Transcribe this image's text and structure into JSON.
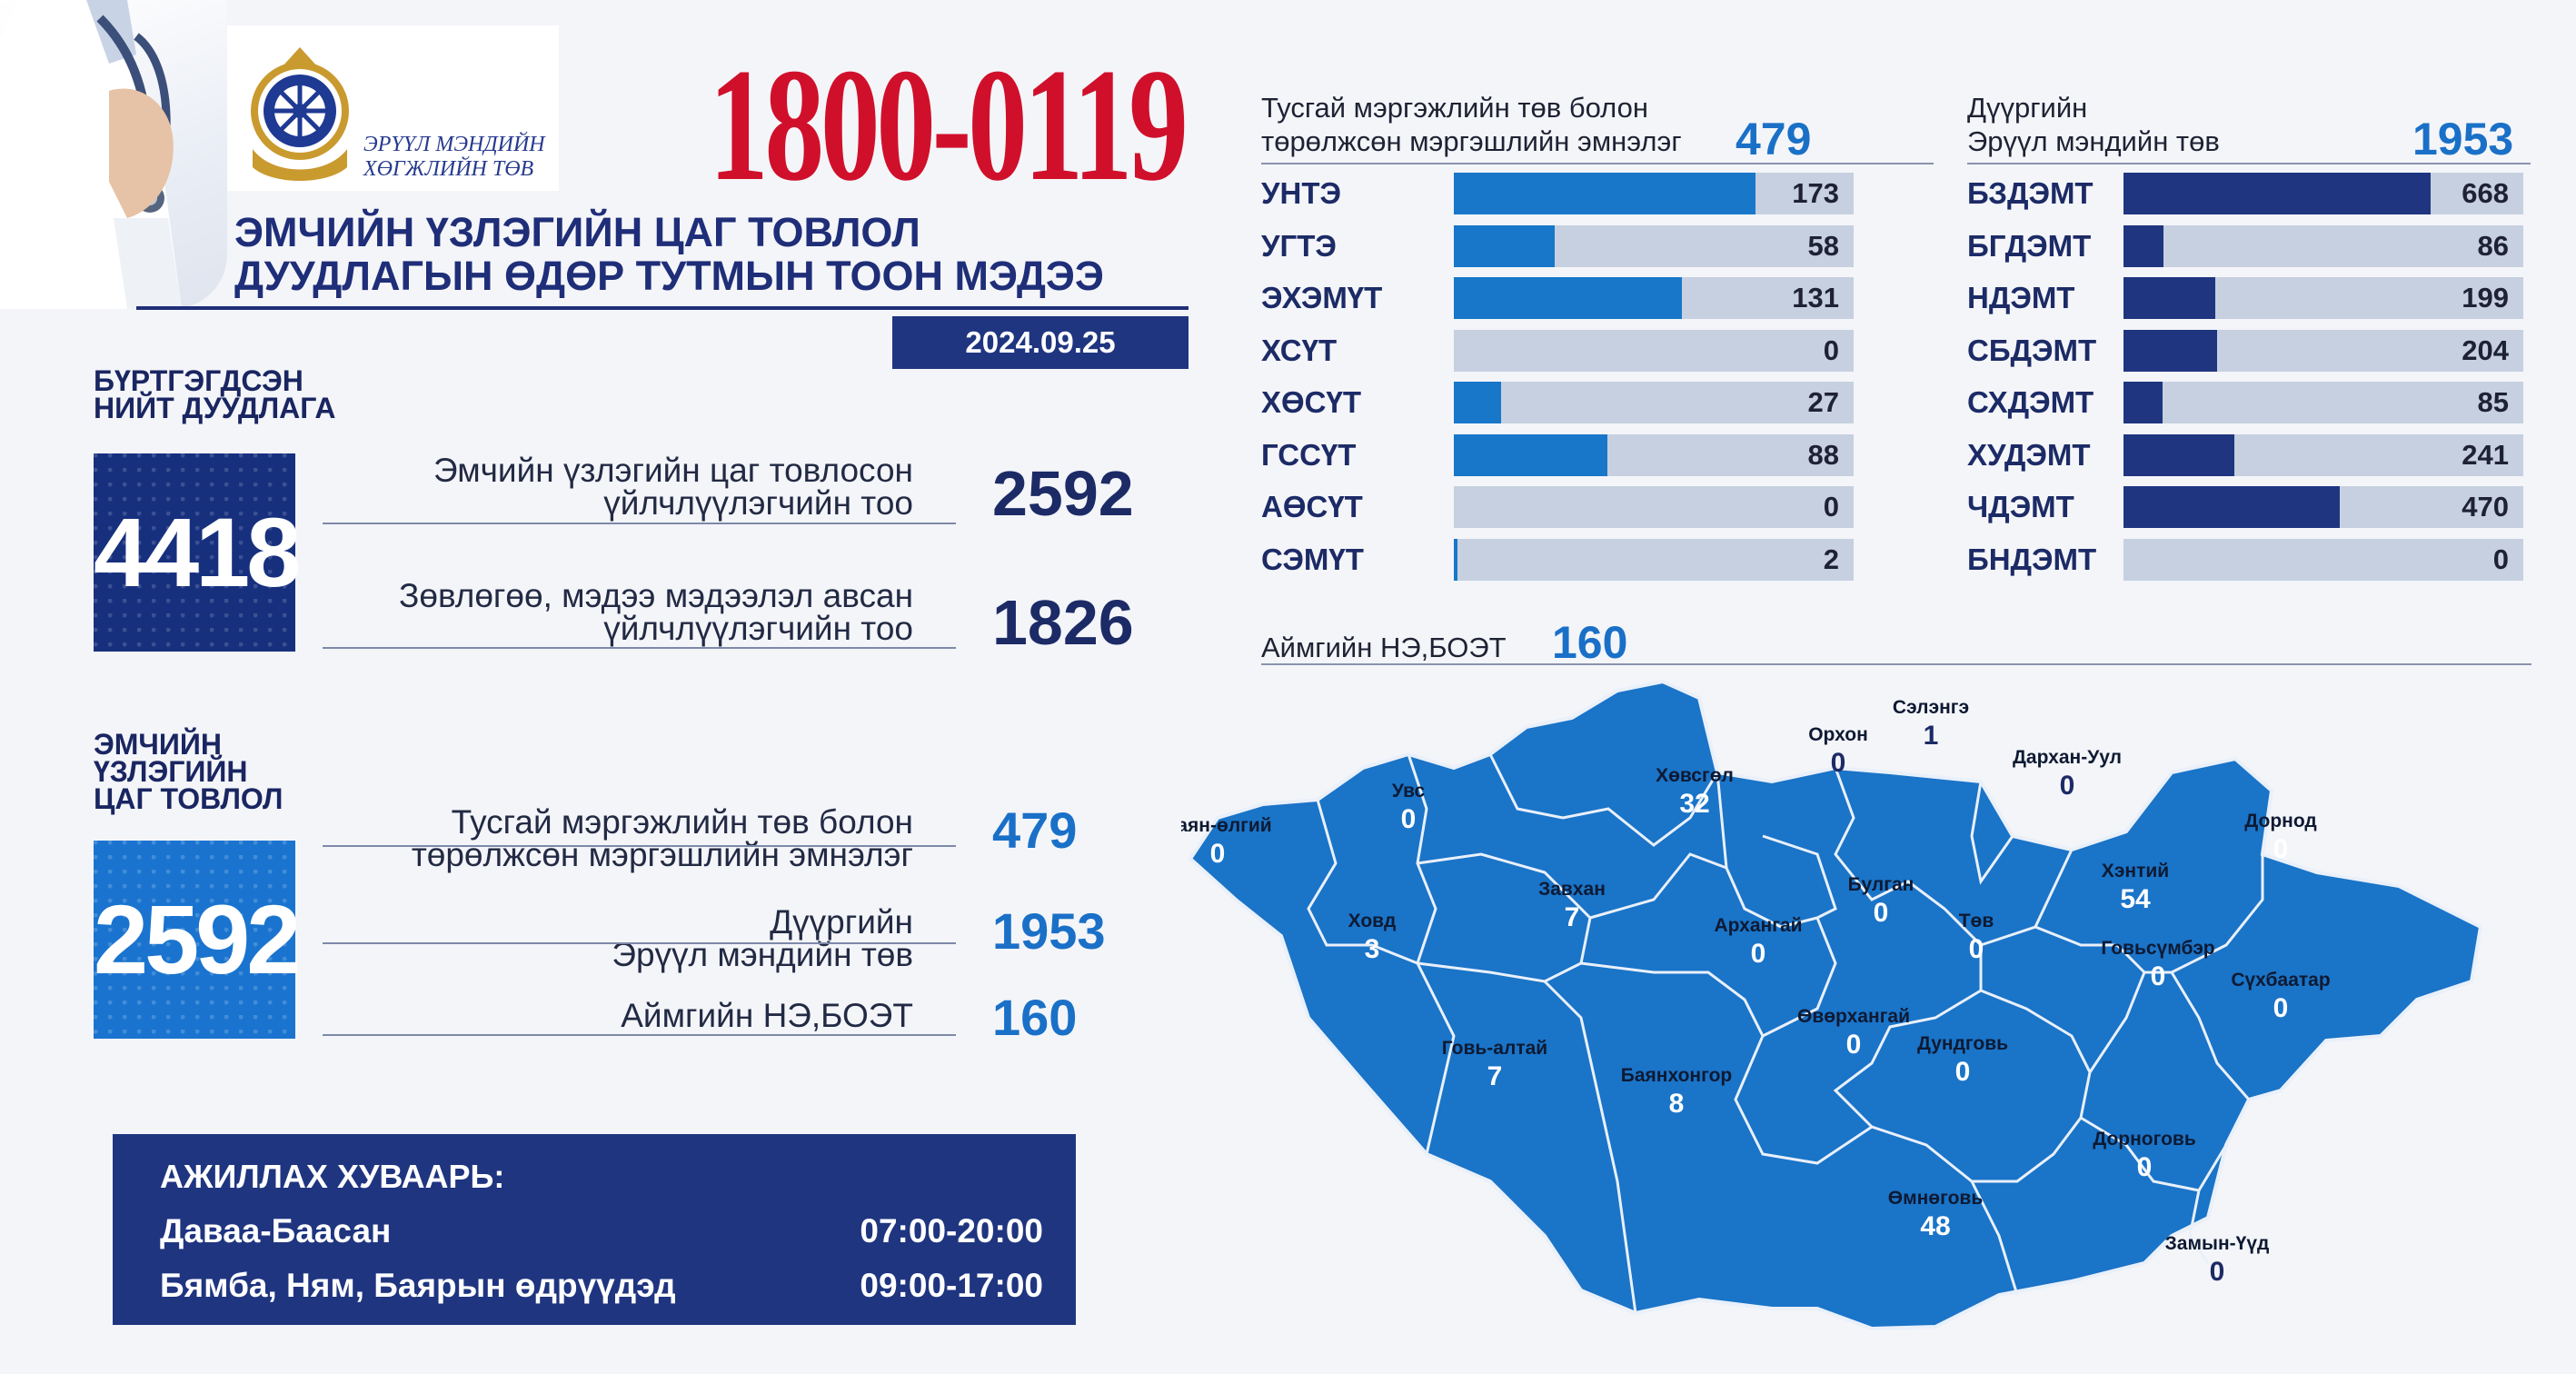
{
  "header": {
    "org_line1": "ЭРҮҮЛ МЭНДИЙН",
    "org_line2": "ХӨГЖЛИЙН ТӨВ",
    "hotline": "1800-0119",
    "title_line1": "ЭМЧИЙН ҮЗЛЭГИЙН ЦАГ  ТОВЛОЛ",
    "title_line2": "ДУУДЛАГЫН ӨДӨР ТУТМЫН ТООН МЭДЭЭ",
    "date": "2024.09.25"
  },
  "registered": {
    "label_line1": "БҮРТГЭГДСЭН",
    "label_line2": "НИЙТ ДУУДЛАГА",
    "total": "4418",
    "items": [
      {
        "line1": "Эмчийн үзлэгийн цаг товлосон",
        "line2": "үйлчлүүлэгчийн тоо",
        "value": "2592"
      },
      {
        "line1": "Зөвлөгөө, мэдээ мэдээлэл авсан",
        "line2": "үйлчлүүлэгчийн тоо",
        "value": "1826"
      }
    ]
  },
  "appointments": {
    "label_line1": "ЭМЧИЙН",
    "label_line2": "ҮЗЛЭГИЙН",
    "label_line3": "ЦАГ ТОВЛОЛ",
    "total": "2592",
    "items": [
      {
        "line1": "Тусгай мэргэжлийн төв болон",
        "line2": "төрөлжсөн мэргэшлийн эмнэлэг",
        "value": "479"
      },
      {
        "line1": "Дүүргийн",
        "line2": "Эрүүл мэндийн төв",
        "value": "1953"
      },
      {
        "line1": "Аймгийн НЭ,БОЭТ",
        "line2": "",
        "value": "160"
      }
    ]
  },
  "schedule": {
    "title": "АЖИЛЛАХ ХУВААРЬ:",
    "rows": [
      {
        "days": "Даваа-Баасан",
        "hours": "07:00-20:00"
      },
      {
        "days": "Бямба, Ням, Баярын өдрүүдэд",
        "hours": "09:00-17:00"
      }
    ]
  },
  "colors": {
    "accent_dark": "#1f3580",
    "accent_blue": "#1a70c7",
    "bar_left": "#1877c9",
    "bar_right": "#1f3580",
    "bar_track": "#c6d0e0",
    "map_fill": "#1a74c8",
    "hotline_red": "#d0102b"
  },
  "chart_data": [
    {
      "type": "bar",
      "title_line1": "Тусгай мэргэжлийн төв болон",
      "title_line2": "төрөлжсөн мэргэшлийн эмнэлэг",
      "total": "479",
      "xlim": [
        0,
        173
      ],
      "categories": [
        "УНТЭ",
        "УГТЭ",
        "ЭХЭМҮТ",
        "ХСҮТ",
        "ХӨСҮТ",
        "ГССҮТ",
        "АӨСҮТ",
        "СЭМҮТ"
      ],
      "values": [
        173,
        58,
        131,
        0,
        27,
        88,
        0,
        2
      ]
    },
    {
      "type": "bar",
      "title_line1": "Дүүргийн",
      "title_line2": "Эрүүл мэндийн төв",
      "total": "1953",
      "xlim": [
        0,
        668
      ],
      "categories": [
        "БЗДЭМТ",
        "БГДЭМТ",
        "НДЭМТ",
        "СБДЭМТ",
        "СХДЭМТ",
        "ХУДЭМТ",
        "ЧДЭМТ",
        "БНДЭМТ"
      ],
      "values": [
        668,
        86,
        199,
        204,
        85,
        241,
        470,
        0
      ]
    },
    {
      "type": "map",
      "title": "Аймгийн НЭ,БОЭТ",
      "total": "160",
      "regions": [
        {
          "name": "Баян-өлгий",
          "value": 0
        },
        {
          "name": "Увс",
          "value": 0
        },
        {
          "name": "Ховд",
          "value": 3
        },
        {
          "name": "Завхан",
          "value": 7
        },
        {
          "name": "Хөвсгөл",
          "value": 32
        },
        {
          "name": "Орхон",
          "value": 0
        },
        {
          "name": "Сэлэнгэ",
          "value": 1
        },
        {
          "name": "Дархан-Уул",
          "value": 0
        },
        {
          "name": "Булган",
          "value": 0
        },
        {
          "name": "Архангай",
          "value": 0
        },
        {
          "name": "Төв",
          "value": 0
        },
        {
          "name": "Хэнтий",
          "value": 54
        },
        {
          "name": "Дорнод",
          "value": 0
        },
        {
          "name": "Говьсүмбэр",
          "value": 0
        },
        {
          "name": "Сүхбаатар",
          "value": 0
        },
        {
          "name": "Говь-алтай",
          "value": 7
        },
        {
          "name": "Баянхонгор",
          "value": 8
        },
        {
          "name": "Өвөрхангай",
          "value": 0
        },
        {
          "name": "Дундговь",
          "value": 0
        },
        {
          "name": "Дорноговь",
          "value": 0
        },
        {
          "name": "Өмнөговь",
          "value": 48
        },
        {
          "name": "Замын-Үүд",
          "value": 0
        }
      ]
    }
  ]
}
